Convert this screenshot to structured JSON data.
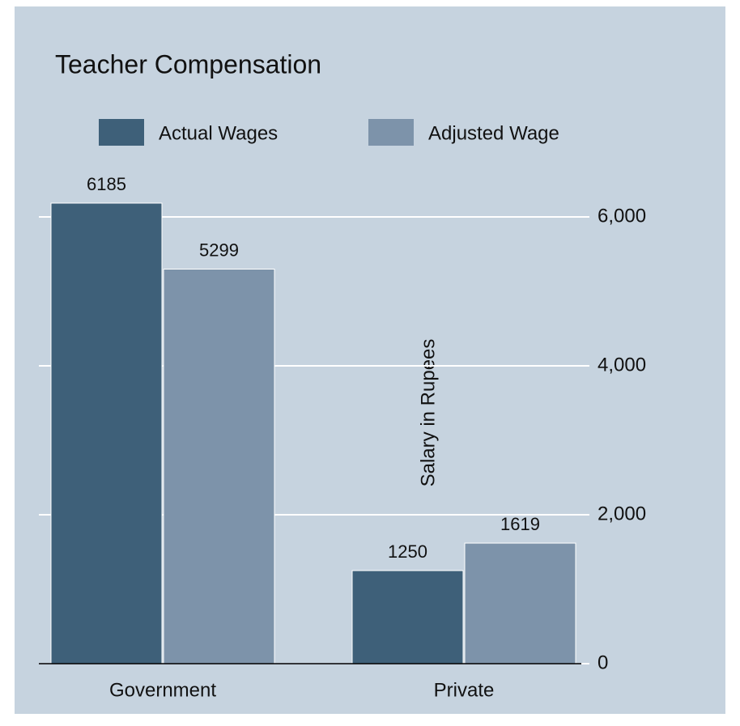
{
  "chart_data": {
    "type": "bar",
    "title": "Teacher Compensation",
    "y_axis_label": "Salary in Rupees",
    "categories": [
      "Government",
      "Private"
    ],
    "series": [
      {
        "name": "Actual Wages",
        "color": "#3e6079",
        "values": [
          6185,
          1250
        ]
      },
      {
        "name": "Adjusted Wage",
        "color": "#7d93aa",
        "values": [
          5299,
          1619
        ]
      }
    ],
    "ylim": [
      0,
      6400
    ],
    "yticks": [
      0,
      {
        "value": 2000,
        "label": "2,000"
      },
      {
        "value": 4000,
        "label": "4,000"
      },
      {
        "value": 6000,
        "label": "6,000"
      }
    ],
    "grid": true,
    "axis_side": "right",
    "legend": "top"
  }
}
